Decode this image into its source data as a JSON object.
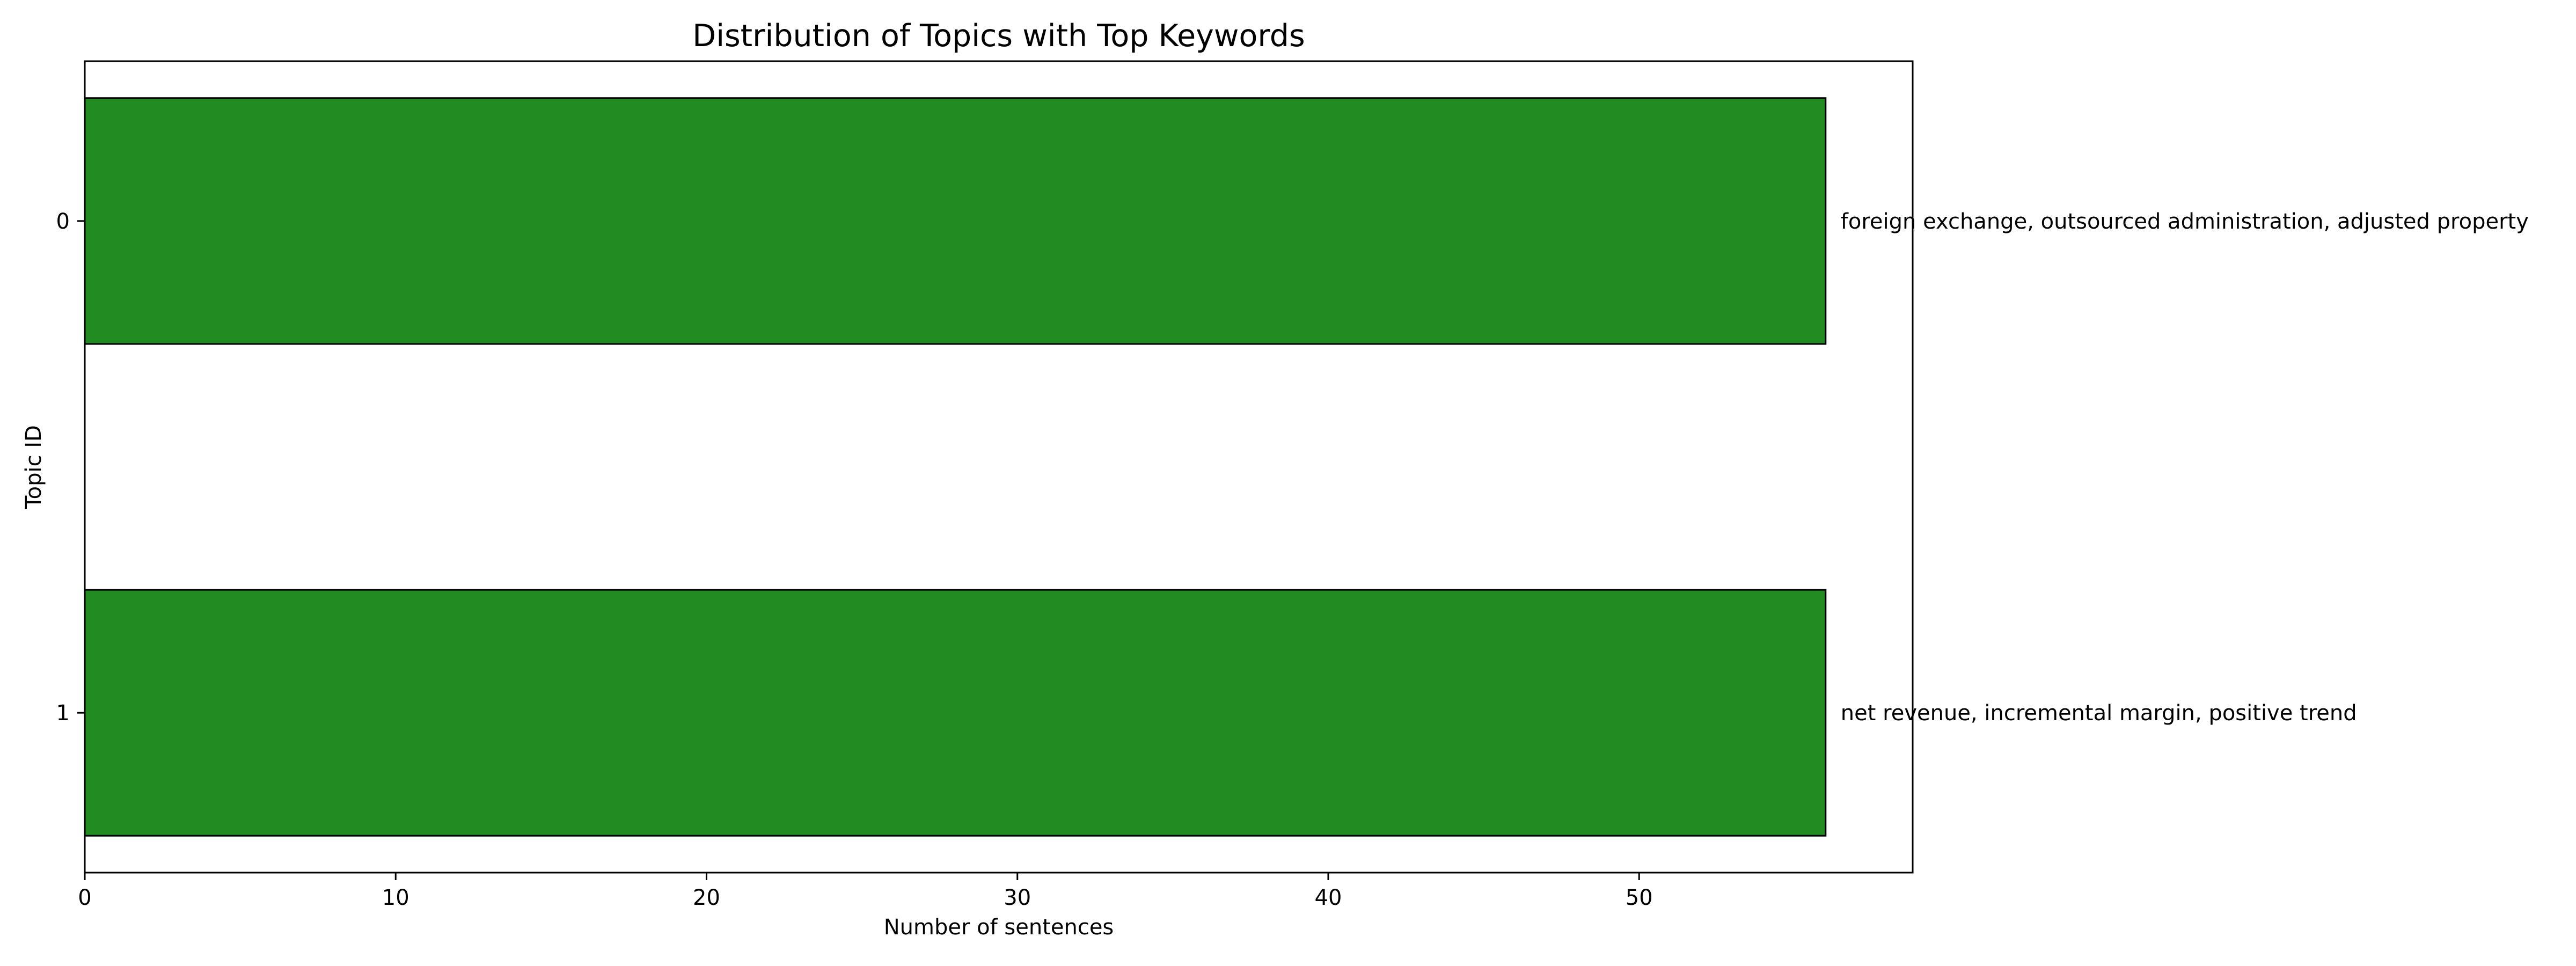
{
  "chart_data": {
    "type": "bar",
    "orientation": "horizontal",
    "title": "Distribution of Topics with Top Keywords",
    "xlabel": "Number of sentences",
    "ylabel": "Topic ID",
    "categories": [
      "0",
      "1"
    ],
    "values": [
      56,
      56
    ],
    "bar_labels": [
      "foreign exchange, outsourced administration, adjusted property",
      "net revenue, incremental margin, positive trend"
    ],
    "xlim": [
      0,
      58.8
    ],
    "x_ticks": [
      0,
      10,
      20,
      30,
      40,
      50
    ],
    "bar_color": "#228b22",
    "bar_edge_color": "#000000",
    "grid": false,
    "legend": "none"
  }
}
